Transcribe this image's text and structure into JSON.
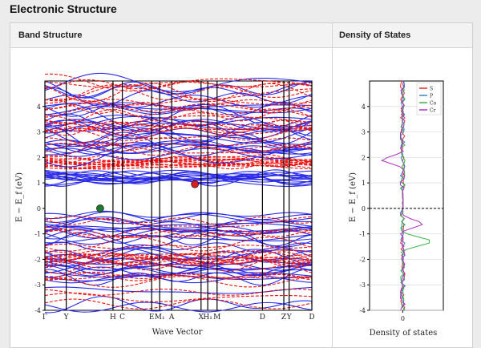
{
  "section_title": "Electronic Structure",
  "panels": {
    "band_title": "Band Structure",
    "dos_title": "Density of States"
  },
  "chart_data": [
    {
      "type": "line",
      "title": "",
      "xlabel": "Wave Vector",
      "ylabel": "E − E_f (eV)",
      "ylim": [
        -4,
        5
      ],
      "yticks": [
        -4,
        -3,
        -2,
        -1,
        0,
        1,
        2,
        3,
        4
      ],
      "kpoint_labels": [
        "Γ",
        "Y",
        "H",
        "C",
        "E",
        "M₁",
        "A",
        "X",
        "H₁",
        "M",
        "D",
        "Z",
        "Y",
        "D"
      ],
      "markers": [
        {
          "name": "VBM",
          "k_index": 2,
          "energy": 0.0,
          "color": "#1e7a2e"
        },
        {
          "name": "CBM",
          "k_index": 8,
          "energy": 0.95,
          "color": "#d42020"
        }
      ],
      "colors": {
        "spin_up": "#2a2ae8",
        "spin_down": "#ee1111"
      }
    },
    {
      "type": "line",
      "title": "",
      "xlabel": "Density of states",
      "ylabel": "E − E_f (eV)",
      "ylim": [
        -4,
        5
      ],
      "xticks": [
        0
      ],
      "fermi_level": 0,
      "series": [
        {
          "name": "S",
          "color": "#e03030"
        },
        {
          "name": "P",
          "color": "#3a86c8"
        },
        {
          "name": "Co",
          "color": "#3cb44b"
        },
        {
          "name": "Cr",
          "color": "#b030c0"
        }
      ]
    }
  ]
}
